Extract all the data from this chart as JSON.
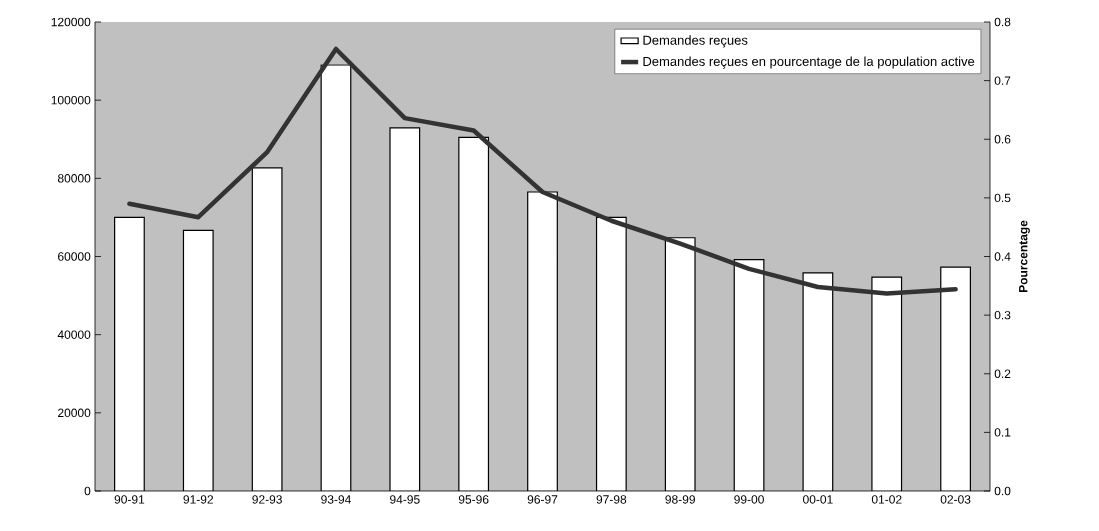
{
  "chart_data": {
    "type": "bar",
    "categories": [
      "90-91",
      "91-92",
      "92-93",
      "93-94",
      "94-95",
      "95-96",
      "96-97",
      "97-98",
      "98-99",
      "99-00",
      "00-01",
      "01-02",
      "02-03"
    ],
    "ylim": [
      0,
      120000
    ],
    "yticks": [
      0,
      20000,
      40000,
      60000,
      80000,
      100000,
      120000
    ],
    "y2lim": [
      0,
      0.8
    ],
    "y2ticks": [
      {
        "value": 0,
        "label": "0.0"
      },
      0.1,
      0.2,
      0.3,
      0.4,
      0.5,
      0.6,
      0.7,
      0.8
    ],
    "y2label": "Pourcentage",
    "legend": "top right",
    "series": [
      {
        "name": "Demandes reçues",
        "color": "#ffffff",
        "values": [
          70000,
          66700,
          82700,
          109000,
          92900,
          90500,
          76500,
          70000,
          64800,
          59200,
          55800,
          54700,
          57300
        ]
      },
      {
        "name": "Demandes reçues en pourcentage de la population active",
        "type": "line",
        "axis": "y2",
        "color": "#333333",
        "values": [
          0.49,
          0.467,
          0.578,
          0.754,
          0.636,
          0.615,
          0.51,
          0.461,
          0.422,
          0.379,
          0.348,
          0.337,
          0.344
        ]
      }
    ]
  }
}
